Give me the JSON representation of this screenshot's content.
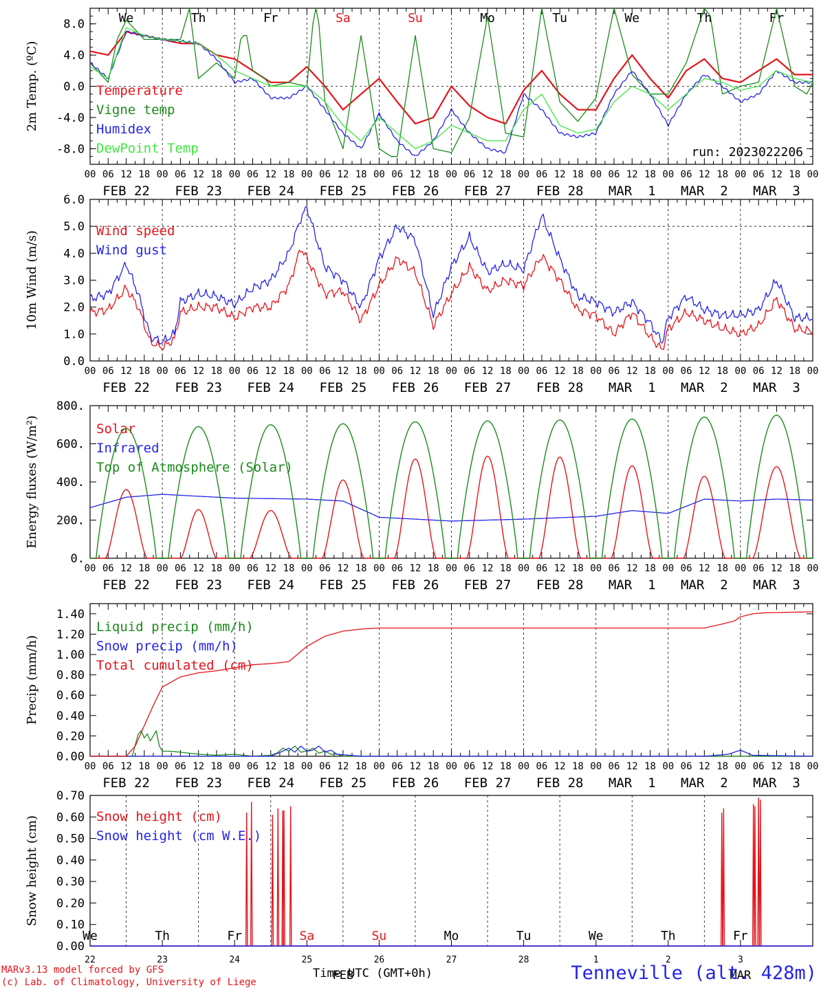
{
  "footer": {
    "model": "MARv3.13 model forced by GFS",
    "credit": "(c) Lab. of Climatology, University of Liege",
    "time_label": "Time UTC (GMT+0h)",
    "station": "Tenneville (alt. 428m)",
    "run": "run: 2023022206"
  },
  "colors": {
    "red": "#e4141b",
    "green": "#1a8a1a",
    "blue": "#2323e6",
    "lightgreen": "#3fe63f",
    "weekend": "#e4141b"
  },
  "time_axis": {
    "hour_ticks": [
      "00",
      "06",
      "12",
      "18"
    ],
    "last_tick": "00",
    "dates": [
      "FEB 22",
      "FEB 23",
      "FEB 24",
      "FEB 25",
      "FEB 26",
      "FEB 27",
      "FEB 28",
      "MAR  1",
      "MAR  2",
      "MAR  3"
    ],
    "weekdays": [
      "We",
      "Th",
      "Fr",
      "Sa",
      "Su",
      "Mo",
      "Tu",
      "We",
      "Th",
      "Fr"
    ],
    "weekend_flags": [
      false,
      false,
      false,
      true,
      true,
      false,
      false,
      false,
      false,
      false
    ],
    "day_numbers": [
      "22",
      "23",
      "24",
      "25",
      "26",
      "27",
      "28",
      "1",
      "2",
      "3"
    ],
    "bottom_label": "FEB",
    "bottom_label2": "MAR"
  },
  "chart_data": [
    {
      "type": "line",
      "ylabel": "2m Temp. (ºC)",
      "ylim": [
        -10,
        10
      ],
      "yticks": [
        "8.0",
        "4.0",
        "0.0",
        "-4.0",
        "-8.0"
      ],
      "ytick_values": [
        8,
        4,
        0,
        -4,
        -8
      ],
      "grid": "dashed vertical at day boundaries, dashed horizontal at 0",
      "x_unit": "hours since FEB 22 00 UTC",
      "series": [
        {
          "name": "Temperature",
          "color": "red",
          "x": [
            0,
            6,
            12,
            18,
            24,
            30,
            36,
            42,
            48,
            54,
            60,
            66,
            72,
            78,
            84,
            90,
            96,
            102,
            108,
            114,
            120,
            126,
            132,
            138,
            144,
            150,
            156,
            162,
            168,
            174,
            180,
            186,
            192,
            198,
            204,
            210,
            216,
            222,
            228,
            234,
            240
          ],
          "values": [
            4.5,
            4,
            7,
            6.5,
            6,
            5.5,
            5.5,
            4,
            3.5,
            2,
            0.5,
            0.5,
            2.5,
            0,
            -3,
            -1,
            1,
            -2,
            -4.8,
            -4,
            0,
            -2.5,
            -4,
            -4.8,
            -0.5,
            2,
            -1,
            -3,
            -3,
            1,
            4,
            1,
            -1.5,
            2,
            3.5,
            1,
            0.5,
            2,
            3.5,
            1.5,
            1.5
          ]
        },
        {
          "name": "Vigne temp",
          "color": "green",
          "x": [
            0,
            6,
            9,
            12,
            18,
            24,
            30,
            33,
            36,
            42,
            48,
            50,
            51,
            52,
            54,
            58,
            60,
            66,
            72,
            74,
            75,
            76,
            78,
            84,
            90,
            96,
            100,
            102,
            108,
            114,
            120,
            126,
            132,
            138,
            144,
            150,
            156,
            162,
            168,
            174,
            180,
            186,
            192,
            198,
            204,
            206,
            210,
            216,
            222,
            228,
            234,
            238,
            240
          ],
          "values": [
            3,
            0.5,
            6,
            8.5,
            6,
            6,
            6,
            10,
            1,
            3,
            1,
            6,
            6.5,
            6.5,
            2,
            1,
            0,
            0.5,
            0,
            8,
            10,
            8,
            -2,
            -8,
            6.5,
            -8,
            -9,
            -9,
            6.5,
            -8,
            -8.5,
            -4,
            9,
            -6,
            -6.5,
            10,
            -2,
            -4.5,
            -1.5,
            10,
            1.5,
            -1,
            -1,
            3,
            10,
            9,
            -1,
            0,
            0.5,
            10,
            0,
            -1,
            0.5
          ]
        },
        {
          "name": "Humidex",
          "color": "blue",
          "x": [
            0,
            6,
            12,
            18,
            24,
            30,
            36,
            42,
            48,
            54,
            60,
            66,
            72,
            78,
            84,
            90,
            96,
            102,
            108,
            114,
            120,
            126,
            132,
            138,
            144,
            150,
            156,
            162,
            168,
            174,
            180,
            186,
            192,
            198,
            204,
            210,
            216,
            222,
            228,
            234,
            240
          ],
          "values": [
            3,
            1,
            7,
            6.5,
            6,
            5.8,
            5.5,
            3.5,
            0.5,
            1,
            -1.5,
            -1.5,
            0,
            -3,
            -6,
            -8,
            -3.5,
            -7,
            -9,
            -7,
            -3,
            -6,
            -8,
            -8.5,
            -1,
            -3,
            -6,
            -6.5,
            -6,
            -1,
            2,
            -1,
            -5,
            -1,
            1.5,
            0,
            -2,
            -1,
            2,
            0.5,
            0.5
          ]
        },
        {
          "name": "DewPoint Temp",
          "color": "lightgreen",
          "x": [
            0,
            6,
            12,
            18,
            24,
            30,
            36,
            42,
            48,
            54,
            60,
            66,
            72,
            78,
            84,
            90,
            96,
            102,
            108,
            114,
            120,
            126,
            132,
            138,
            144,
            150,
            156,
            162,
            168,
            174,
            180,
            186,
            192,
            198,
            204,
            210,
            216,
            222,
            228,
            234,
            240
          ],
          "values": [
            2.5,
            1,
            7.5,
            6.5,
            6,
            5.8,
            5.5,
            4,
            2,
            1,
            0,
            0,
            0,
            -2,
            -5,
            -7,
            -4,
            -6,
            -8,
            -7,
            -5,
            -6,
            -7,
            -7,
            -3,
            -1,
            -5,
            -6,
            -5.5,
            -2,
            0,
            -1,
            -3,
            -1,
            1,
            0.5,
            -0.5,
            0,
            2,
            1,
            0.5
          ]
        }
      ]
    },
    {
      "type": "line",
      "ylabel": "10m Wind (m/s)",
      "ylim": [
        0,
        6
      ],
      "yticks": [
        "6.0",
        "5.0",
        "4.0",
        "3.0",
        "2.0",
        "1.0",
        "0.0"
      ],
      "ytick_values": [
        6,
        5,
        4,
        3,
        2,
        1,
        0
      ],
      "x_unit": "hours since FEB 22 00 UTC",
      "series": [
        {
          "name": "Wind speed",
          "color": "red",
          "x": [
            0,
            6,
            12,
            16,
            20,
            24,
            28,
            30,
            36,
            42,
            48,
            54,
            60,
            66,
            70,
            72,
            78,
            84,
            90,
            96,
            102,
            108,
            114,
            120,
            126,
            132,
            138,
            144,
            150,
            156,
            162,
            168,
            174,
            180,
            186,
            190,
            192,
            198,
            204,
            210,
            216,
            222,
            228,
            234,
            240
          ],
          "values": [
            1.8,
            1.9,
            2.7,
            2,
            0.7,
            0.5,
            0.8,
            1.8,
            2,
            2,
            1.6,
            2,
            2,
            2.8,
            4.2,
            3.8,
            2.5,
            2.6,
            1.5,
            2.8,
            3.8,
            3.3,
            1.3,
            2.5,
            3.5,
            2.6,
            3.0,
            2.8,
            3.9,
            3.0,
            1.9,
            1.7,
            1.0,
            1.8,
            0.9,
            0.4,
            1.2,
            1.8,
            1.5,
            1.2,
            1.0,
            1.3,
            2.3,
            1.2,
            1.1
          ]
        },
        {
          "name": "Wind gust",
          "color": "blue",
          "x": [
            0,
            6,
            12,
            16,
            20,
            24,
            28,
            30,
            36,
            42,
            48,
            54,
            60,
            66,
            70,
            72,
            78,
            84,
            90,
            96,
            102,
            108,
            114,
            120,
            126,
            132,
            138,
            144,
            150,
            156,
            162,
            168,
            174,
            180,
            186,
            190,
            192,
            198,
            204,
            210,
            216,
            222,
            228,
            234,
            240
          ],
          "values": [
            2.3,
            2.5,
            3.6,
            2.5,
            0.9,
            0.7,
            1.0,
            2.2,
            2.5,
            2.4,
            2.1,
            2.7,
            3.0,
            4.0,
            5.3,
            5.7,
            3.5,
            3.0,
            2.0,
            3.8,
            5.0,
            4.5,
            1.7,
            3.5,
            4.6,
            3.3,
            3.6,
            3.4,
            5.4,
            3.8,
            2.4,
            2.2,
            1.8,
            2.2,
            1.4,
            0.7,
            1.6,
            2.4,
            1.9,
            1.7,
            1.7,
            1.9,
            3.0,
            1.6,
            1.6
          ]
        }
      ]
    },
    {
      "type": "line",
      "ylabel": "Energy fluxes (W/m²)",
      "ylim": [
        0,
        800
      ],
      "yticks": [
        "800.",
        "600.",
        "400.",
        "200.",
        "0."
      ],
      "ytick_values": [
        800,
        600,
        400,
        200,
        0
      ],
      "x_unit": "hours since FEB 22 00 UTC",
      "series": [
        {
          "name": "Solar",
          "color": "red",
          "peaks": [
            [
              12,
              360,
              7
            ],
            [
              36,
              255,
              6
            ],
            [
              60,
              250,
              7
            ],
            [
              84,
              410,
              7
            ],
            [
              108,
              520,
              7
            ],
            [
              132,
              535,
              7
            ],
            [
              156,
              530,
              7
            ],
            [
              180,
              485,
              7
            ],
            [
              204,
              430,
              7
            ],
            [
              228,
              480,
              8
            ]
          ]
        },
        {
          "name": "Infrared",
          "color": "blue",
          "x": [
            0,
            12,
            24,
            48,
            72,
            84,
            96,
            120,
            144,
            168,
            180,
            192,
            204,
            216,
            228,
            240
          ],
          "values": [
            265,
            320,
            335,
            315,
            310,
            300,
            215,
            195,
            205,
            220,
            250,
            235,
            310,
            300,
            310,
            305
          ]
        },
        {
          "name": "Top of Atmosphere (Solar)",
          "color": "green",
          "peaks": [
            [
              12,
              680,
              10
            ],
            [
              36,
              690,
              10
            ],
            [
              60,
              700,
              10
            ],
            [
              84,
              705,
              10
            ],
            [
              108,
              715,
              10
            ],
            [
              132,
              720,
              10
            ],
            [
              156,
              725,
              10
            ],
            [
              180,
              730,
              10
            ],
            [
              204,
              740,
              10
            ],
            [
              228,
              750,
              10
            ]
          ]
        }
      ]
    },
    {
      "type": "line",
      "ylabel": "Precip (mm/h)",
      "ylim": [
        0,
        1.5
      ],
      "yticks": [
        "1.40",
        "1.20",
        "1.00",
        "0.80",
        "0.60",
        "0.40",
        "0.20",
        "0.00"
      ],
      "ytick_values": [
        1.4,
        1.2,
        1.0,
        0.8,
        0.6,
        0.4,
        0.2,
        0.0
      ],
      "x_unit": "hours since FEB 22 00 UTC",
      "series": [
        {
          "name": "Liquid precip (mm/h)",
          "color": "green",
          "x": [
            0,
            14,
            16,
            17,
            18,
            19,
            20,
            21,
            22,
            23,
            24,
            26,
            30,
            36,
            42,
            48,
            54,
            60,
            62,
            64,
            66,
            68,
            70,
            72,
            74,
            76,
            78,
            80,
            82,
            84,
            240
          ],
          "values": [
            0,
            0,
            0.22,
            0.25,
            0.18,
            0.22,
            0.15,
            0.2,
            0.25,
            0.1,
            0.05,
            0.05,
            0.04,
            0.02,
            0.01,
            0.02,
            0,
            0.01,
            0.03,
            0.08,
            0.05,
            0.1,
            0.04,
            0.05,
            0.08,
            0.03,
            0.05,
            0.02,
            0.02,
            0,
            0
          ]
        },
        {
          "name": "Snow precip (mm/h)",
          "color": "blue",
          "x": [
            0,
            60,
            64,
            66,
            68,
            70,
            72,
            74,
            76,
            78,
            80,
            82,
            90,
            204,
            212,
            216,
            220,
            240
          ],
          "values": [
            0,
            0,
            0.05,
            0.08,
            0.04,
            0.1,
            0.05,
            0.06,
            0.1,
            0.04,
            0.06,
            0.02,
            0,
            0,
            0.02,
            0.06,
            0.01,
            0
          ]
        },
        {
          "name": "Total cumulated (cm)",
          "color": "red",
          "x": [
            0,
            12,
            15,
            18,
            21,
            24,
            30,
            36,
            42,
            48,
            54,
            60,
            66,
            72,
            78,
            84,
            90,
            96,
            120,
            144,
            168,
            192,
            204,
            210,
            214,
            216,
            220,
            224,
            240
          ],
          "values": [
            0,
            0,
            0.1,
            0.3,
            0.5,
            0.68,
            0.78,
            0.82,
            0.84,
            0.87,
            0.9,
            0.91,
            0.93,
            1.08,
            1.18,
            1.23,
            1.25,
            1.26,
            1.26,
            1.26,
            1.26,
            1.26,
            1.26,
            1.3,
            1.33,
            1.37,
            1.4,
            1.41,
            1.42
          ]
        }
      ]
    },
    {
      "type": "line",
      "ylabel": "Snow height (cm)",
      "ylim": [
        0,
        0.7
      ],
      "yticks": [
        "0.70",
        "0.60",
        "0.50",
        "0.40",
        "0.30",
        "0.20",
        "0.10",
        "0.00"
      ],
      "ytick_values": [
        0.7,
        0.6,
        0.5,
        0.4,
        0.3,
        0.2,
        0.1,
        0.0
      ],
      "x_unit": "hours since FEB 22 00 UTC",
      "series": [
        {
          "name": "Snow height (cm)",
          "color": "red",
          "spikes": [
            [
              52.0,
              0.62
            ],
            [
              53.6,
              0.67
            ],
            [
              60.6,
              0.61
            ],
            [
              62.4,
              0.64
            ],
            [
              64.0,
              0.63
            ],
            [
              64.4,
              0.63
            ],
            [
              66.6,
              0.65
            ],
            [
              209.8,
              0.62
            ],
            [
              210.4,
              0.64
            ],
            [
              220.3,
              0.66
            ],
            [
              220.8,
              0.65
            ],
            [
              222.0,
              0.69
            ],
            [
              222.6,
              0.68
            ]
          ]
        },
        {
          "name": "Snow height (cm W.E.)",
          "color": "blue",
          "values": [
            0
          ]
        }
      ]
    }
  ]
}
